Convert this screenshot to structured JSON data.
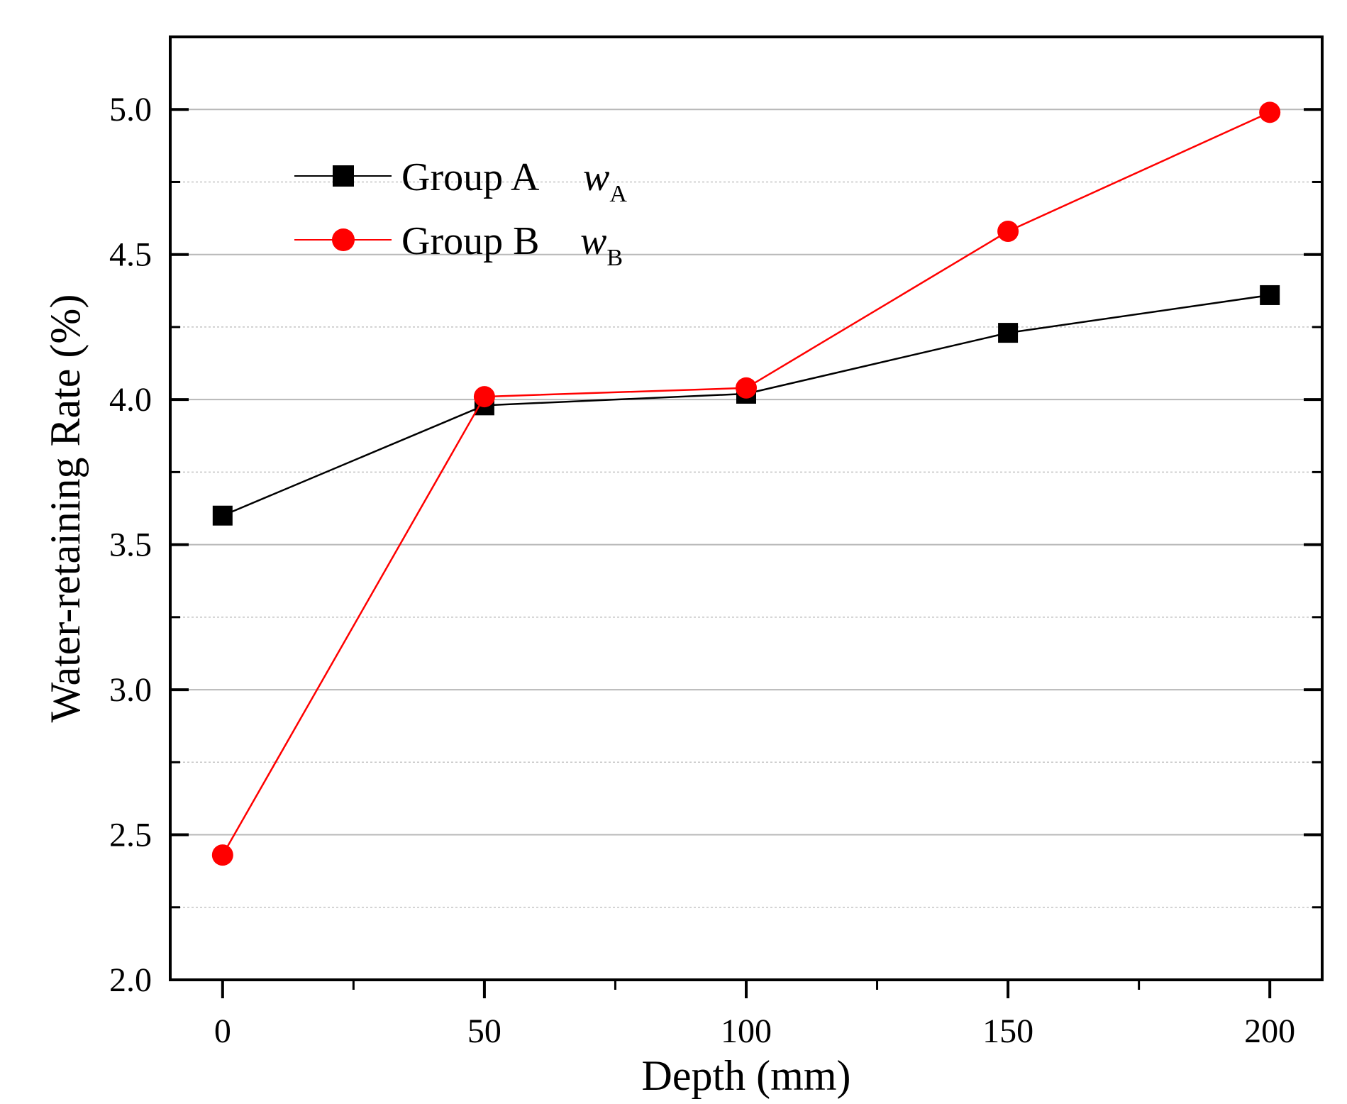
{
  "chart_data": {
    "type": "line",
    "title": "",
    "xlabel": "Depth (mm)",
    "ylabel": "Water-retaining Rate (%)",
    "x": [
      0,
      50,
      100,
      150,
      200
    ],
    "xlim": [
      -10,
      210
    ],
    "ylim": [
      2.0,
      5.25
    ],
    "x_ticks": [
      0,
      50,
      100,
      150,
      200
    ],
    "x_tick_labels": [
      "0",
      "50",
      "100",
      "150",
      "200"
    ],
    "y_ticks": [
      2.0,
      2.5,
      3.0,
      3.5,
      4.0,
      4.5,
      5.0
    ],
    "y_tick_labels": [
      "2.0",
      "2.5",
      "3.0",
      "3.5",
      "4.0",
      "4.5",
      "5.0"
    ],
    "y_minor_ticks": [
      2.25,
      2.75,
      3.25,
      3.75,
      4.25,
      4.75
    ],
    "grid": true,
    "legend_position": "top-left",
    "series": [
      {
        "name": "Group A",
        "symbol": "w",
        "subscript": "A",
        "color": "#000000",
        "marker": "square",
        "values": [
          3.6,
          3.98,
          4.02,
          4.23,
          4.36
        ]
      },
      {
        "name": "Group B",
        "symbol": "w",
        "subscript": "B",
        "color": "#ff0000",
        "marker": "circle",
        "values": [
          2.43,
          4.01,
          4.04,
          4.58,
          4.99
        ]
      }
    ]
  }
}
